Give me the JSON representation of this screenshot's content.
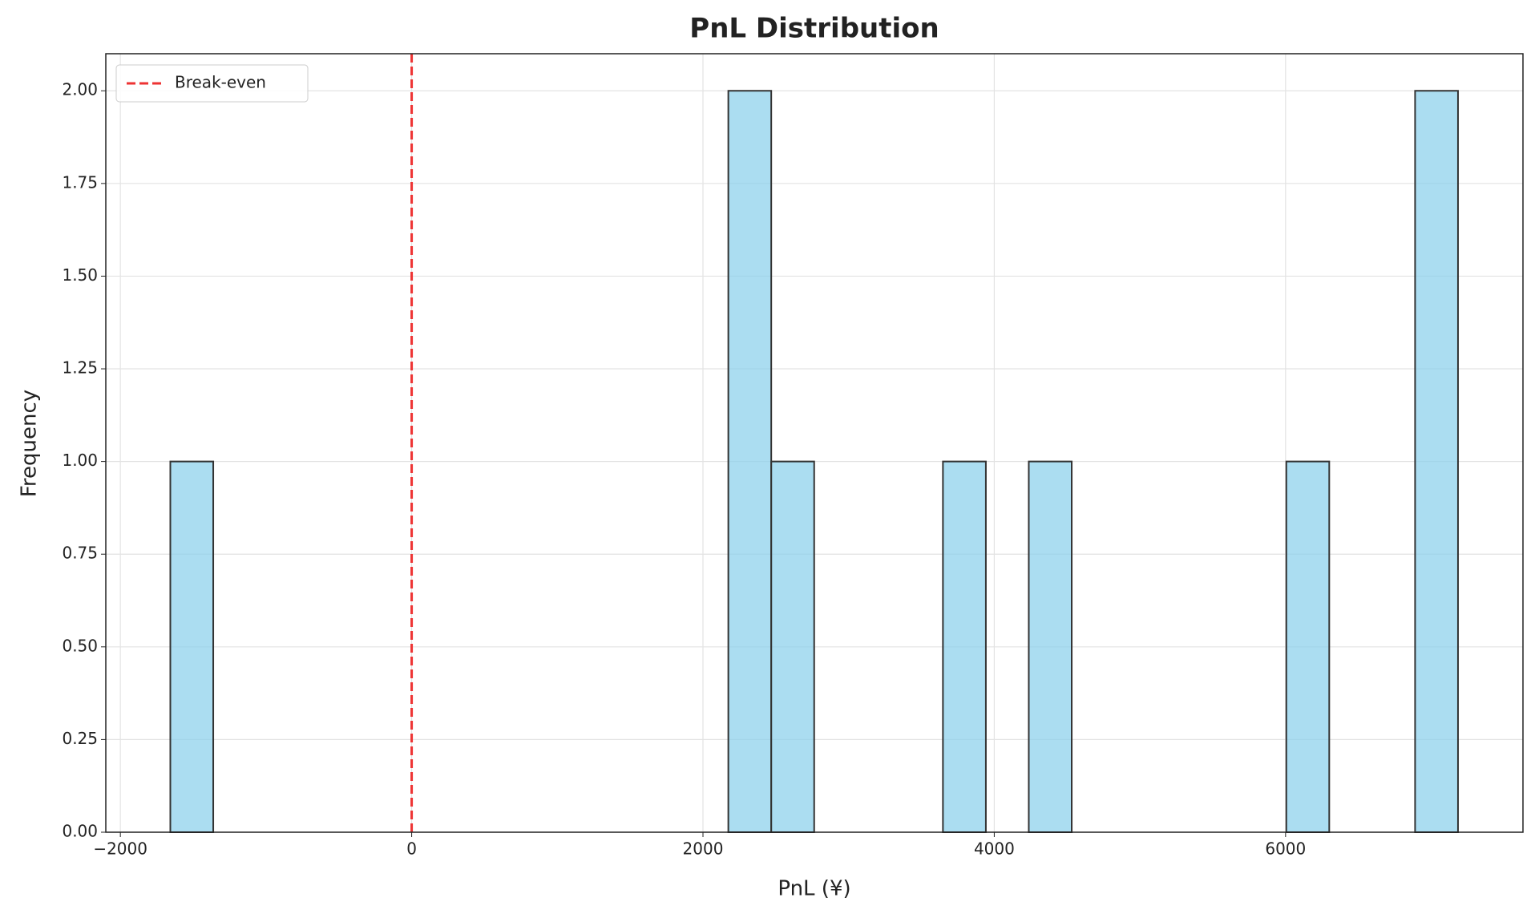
{
  "chart_data": {
    "type": "histogram",
    "title": "PnL Distribution",
    "x_label": "PnL (¥)",
    "y_label": "Frequency",
    "bins": [
      -1657,
      -1362.3,
      -1067.6,
      -772.9,
      -478.2,
      -183.5,
      111.2,
      405.9,
      700.6,
      995.3,
      1290,
      1584.7,
      1879.4,
      2174.1,
      2468.8,
      2763.5,
      3058.2,
      3352.9,
      3647.6,
      3942.3,
      4237,
      4531.7,
      4826.4,
      5121.1,
      5415.8,
      5710.5,
      6005.2,
      6299.9,
      6594.6,
      6889.3,
      7184
    ],
    "counts": [
      1,
      0,
      0,
      0,
      0,
      0,
      0,
      0,
      0,
      0,
      0,
      0,
      0,
      2,
      1,
      0,
      0,
      0,
      1,
      0,
      1,
      0,
      0,
      0,
      0,
      0,
      1,
      0,
      0,
      2
    ],
    "color": "#87ceeb",
    "edge_color": "#333333",
    "xlim": [
      -2100,
      7630
    ],
    "ylim": [
      0,
      2.1
    ],
    "xticks": [
      {
        "value": -2000,
        "label": "−2000"
      },
      0,
      2000,
      4000,
      6000
    ],
    "yticks": [
      {
        "value": 0,
        "label": "0.00"
      },
      {
        "value": 0.25,
        "label": "0.25"
      },
      {
        "value": 0.5,
        "label": "0.50"
      },
      {
        "value": 0.75,
        "label": "0.75"
      },
      {
        "value": 1,
        "label": "1.00"
      },
      {
        "value": 1.25,
        "label": "1.25"
      },
      {
        "value": 1.5,
        "label": "1.50"
      },
      {
        "value": 1.75,
        "label": "1.75"
      },
      {
        "value": 2,
        "label": "2.00"
      }
    ],
    "vline": {
      "x": 0,
      "label": "Break-even",
      "color": "#ee3333"
    },
    "grid": true,
    "legend": "upper left"
  }
}
